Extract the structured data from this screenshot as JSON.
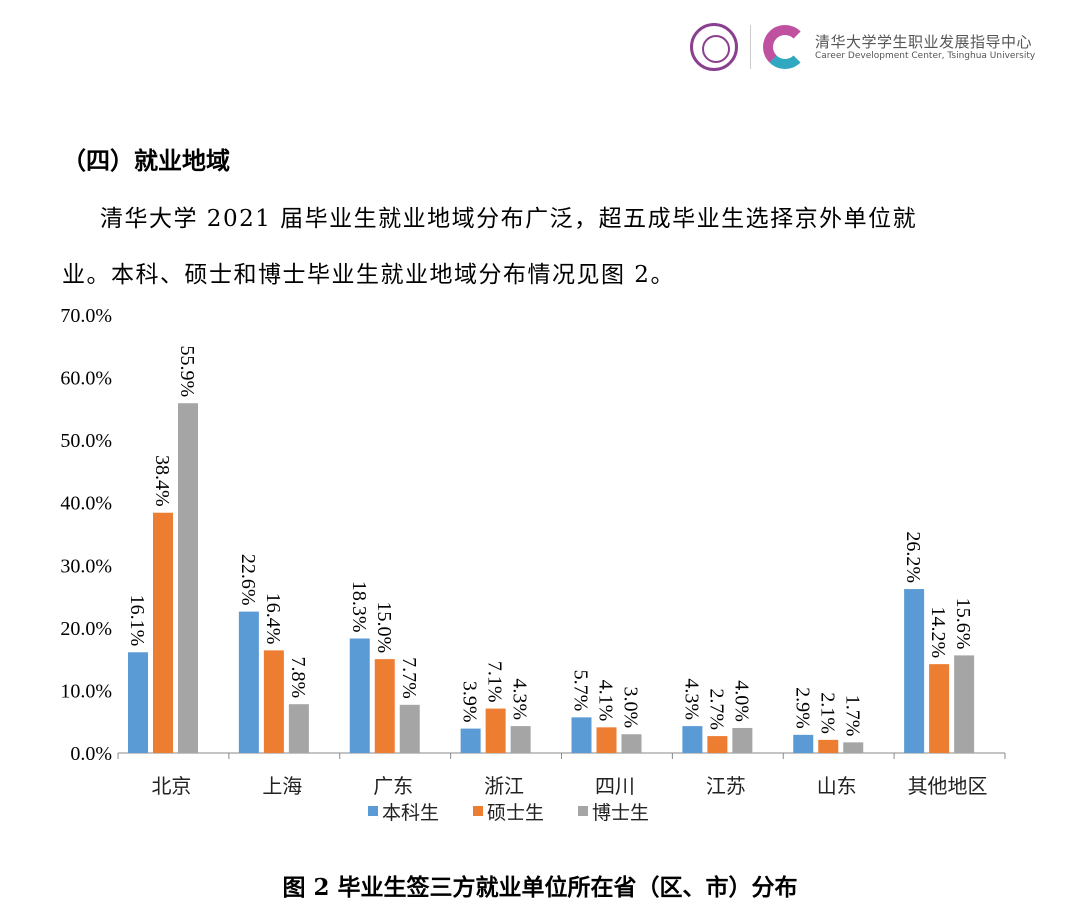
{
  "header": {
    "logo_text_cn": "清华大学学生职业发展指导中心",
    "logo_text_en": "Career Development Center, Tsinghua University"
  },
  "section_heading": "（四）就业地域",
  "paragraph_line1": "清华大学 2021 届毕业生就业地域分布广泛，超五成毕业生选择京外单位就",
  "paragraph_line2": "业。本科、硕士和博士毕业生就业地域分布情况见图 2。",
  "caption": "图 2 毕业生签三方就业单位所在省（区、市）分布",
  "chart_data": {
    "type": "bar",
    "title": "",
    "categories": [
      "北京",
      "上海",
      "广东",
      "浙江",
      "四川",
      "江苏",
      "山东",
      "其他地区"
    ],
    "series": [
      {
        "name": "本科生",
        "color": "#5b9bd5",
        "values": [
          16.1,
          22.6,
          18.3,
          3.9,
          5.7,
          4.3,
          2.9,
          26.2
        ]
      },
      {
        "name": "硕士生",
        "color": "#ed7d31",
        "values": [
          38.4,
          16.4,
          15.0,
          7.1,
          4.1,
          2.7,
          2.1,
          14.2
        ]
      },
      {
        "name": "博士生",
        "color": "#a5a5a5",
        "values": [
          55.9,
          7.8,
          7.7,
          4.3,
          3.0,
          4.0,
          1.7,
          15.6
        ]
      }
    ],
    "ylim": [
      0,
      70
    ],
    "yticks": [
      "0.0%",
      "10.0%",
      "20.0%",
      "30.0%",
      "40.0%",
      "50.0%",
      "60.0%",
      "70.0%"
    ],
    "grid": false,
    "legend": "bottom",
    "data_labels": true
  }
}
